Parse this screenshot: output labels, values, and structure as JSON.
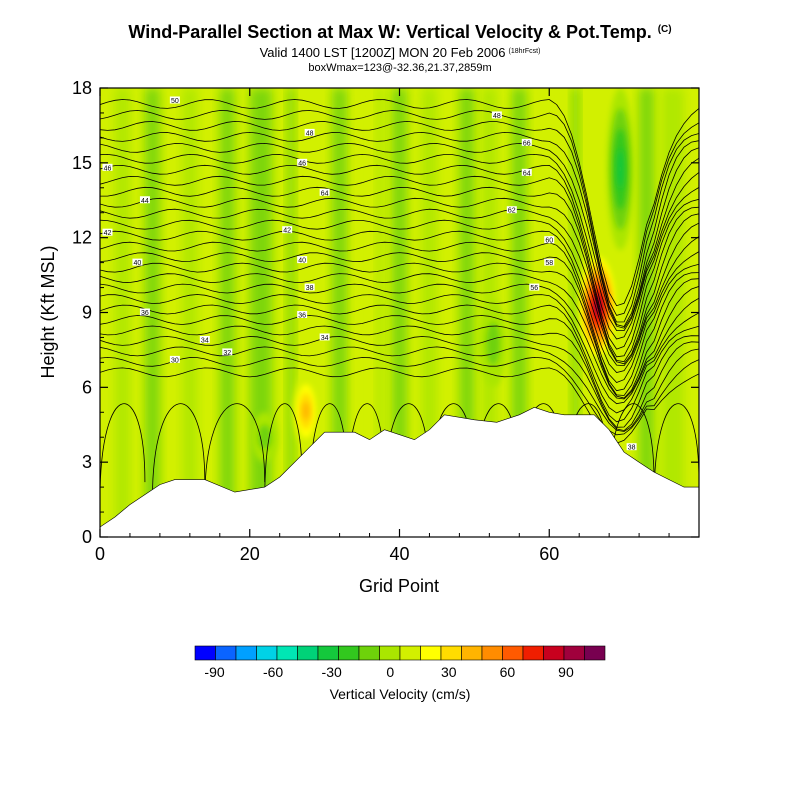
{
  "title": "Wind-Parallel Section at Max W: Vertical Velocity & Pot.Temp.",
  "title_tag": "(C)",
  "subtitle": "Valid 1400 LST [1200Z] MON 20 Feb 2006",
  "subtitle_tag": "(18hrFcst)",
  "subtitle2": "boxWmax=123@-32.36,21.37,2859m",
  "chart_data": {
    "type": "heatmap",
    "xlabel": "Grid Point",
    "ylabel": "Height (Kft MSL)",
    "xlim": [
      0,
      80
    ],
    "ylim": [
      0,
      18
    ],
    "x_ticks": [
      "0",
      "20",
      "40",
      "60"
    ],
    "y_ticks": [
      "0",
      "3",
      "6",
      "9",
      "12",
      "15",
      "18"
    ],
    "colorbar": {
      "label": "Vertical Velocity (cm/s)",
      "tick_labels": [
        "-90",
        "-60",
        "-30",
        "0",
        "30",
        "60",
        "90"
      ],
      "tick_values": [
        -90,
        -60,
        -30,
        0,
        30,
        60,
        90
      ],
      "levels": [
        -100,
        -90,
        -80,
        -70,
        -60,
        -50,
        -40,
        -30,
        -20,
        -10,
        0,
        10,
        20,
        30,
        40,
        50,
        60,
        70,
        80,
        90,
        100,
        110
      ],
      "colors": [
        "#0000ff",
        "#0a64ff",
        "#00a0ff",
        "#00d2e6",
        "#00e6b4",
        "#00d278",
        "#14c83c",
        "#32c81e",
        "#6ed20a",
        "#aae600",
        "#d2f000",
        "#ffff00",
        "#ffdc00",
        "#ffb400",
        "#ff8c00",
        "#ff5a00",
        "#f01e00",
        "#c8001e",
        "#a0003c",
        "#780050"
      ]
    },
    "terrain_height_kft": [
      [
        0,
        0.4
      ],
      [
        2,
        0.8
      ],
      [
        4,
        1.3
      ],
      [
        6,
        1.7
      ],
      [
        8,
        2.1
      ],
      [
        10,
        2.3
      ],
      [
        14,
        2.3
      ],
      [
        18,
        1.8
      ],
      [
        22,
        2.0
      ],
      [
        24,
        2.4
      ],
      [
        26,
        3.0
      ],
      [
        28,
        3.6
      ],
      [
        30,
        4.2
      ],
      [
        34,
        4.2
      ],
      [
        36,
        3.9
      ],
      [
        38,
        4.3
      ],
      [
        42,
        3.9
      ],
      [
        44,
        4.3
      ],
      [
        46,
        4.9
      ],
      [
        50,
        4.7
      ],
      [
        53,
        4.6
      ],
      [
        56,
        4.9
      ],
      [
        58,
        5.2
      ],
      [
        60,
        5.0
      ],
      [
        62,
        4.9
      ],
      [
        66,
        4.9
      ],
      [
        68,
        4.3
      ],
      [
        70,
        3.4
      ],
      [
        72,
        3.0
      ],
      [
        74,
        2.6
      ],
      [
        76,
        2.3
      ],
      [
        78,
        2.0
      ],
      [
        80,
        2.0
      ]
    ],
    "vertical_velocity_features": [
      {
        "x": 66.5,
        "y_bottom": 7.0,
        "y_top": 11.5,
        "w_cm_s": 90
      },
      {
        "x": 27.5,
        "y_bottom": 3.6,
        "y_top": 6.5,
        "w_cm_s": 40
      },
      {
        "x": 69.5,
        "y_bottom": 11.5,
        "y_top": 18.0,
        "w_cm_s": -40
      },
      {
        "x": 22,
        "y_bottom": 3.0,
        "y_top": 5.0,
        "w_cm_s": -20
      },
      {
        "x": 52.5,
        "y_bottom": 6.0,
        "y_top": 9.5,
        "w_cm_s": -20
      }
    ],
    "pot_temp_contour_labels": [
      {
        "text": "50",
        "x": 10,
        "y": 17.5
      },
      {
        "text": "48",
        "x": 28,
        "y": 16.2
      },
      {
        "text": "48",
        "x": 53,
        "y": 16.9
      },
      {
        "text": "46",
        "x": 27,
        "y": 15.0
      },
      {
        "text": "46",
        "x": 1,
        "y": 14.8
      },
      {
        "text": "66",
        "x": 57,
        "y": 15.8
      },
      {
        "text": "64",
        "x": 30,
        "y": 13.8
      },
      {
        "text": "64",
        "x": 57,
        "y": 14.6
      },
      {
        "text": "44",
        "x": 6,
        "y": 13.5
      },
      {
        "text": "62",
        "x": 55,
        "y": 13.1
      },
      {
        "text": "42",
        "x": 1,
        "y": 12.2
      },
      {
        "text": "42",
        "x": 25,
        "y": 12.3
      },
      {
        "text": "60",
        "x": 60,
        "y": 11.9
      },
      {
        "text": "40",
        "x": 5,
        "y": 11.0
      },
      {
        "text": "40",
        "x": 27,
        "y": 11.1
      },
      {
        "text": "58",
        "x": 60,
        "y": 11.0
      },
      {
        "text": "38",
        "x": 28,
        "y": 10.0
      },
      {
        "text": "56",
        "x": 58,
        "y": 10.0
      },
      {
        "text": "36",
        "x": 6,
        "y": 9.0
      },
      {
        "text": "36",
        "x": 27,
        "y": 8.9
      },
      {
        "text": "34",
        "x": 30,
        "y": 8.0
      },
      {
        "text": "34",
        "x": 14,
        "y": 7.9
      },
      {
        "text": "32",
        "x": 17,
        "y": 7.4
      },
      {
        "text": "30",
        "x": 10,
        "y": 7.1
      },
      {
        "text": "38",
        "x": 71,
        "y": 3.6
      }
    ]
  }
}
